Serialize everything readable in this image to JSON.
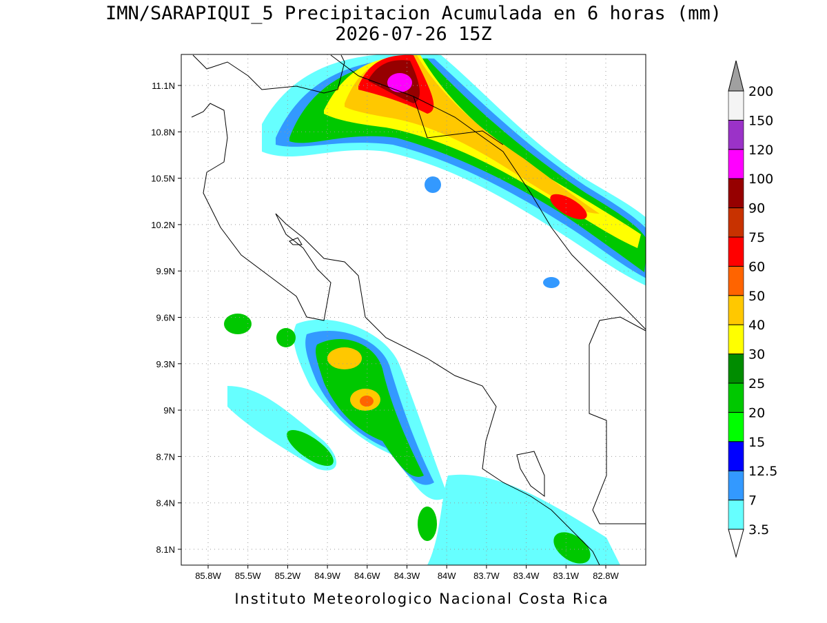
{
  "title": "IMN/SARAPIQUI_5 Precipitacion Acumulada en 6 horas (mm)",
  "subtitle": "2026-07-26 15Z",
  "lat_labels": [
    "11.1N",
    "10.8N",
    "10.5N",
    "10.2N",
    "9.9N",
    "9.6N",
    "9.3N",
    "9N",
    "8.7N",
    "8.4N",
    "8.1N"
  ],
  "lon_labels": [
    "85.8W",
    "85.5W",
    "85.2W",
    "84.9W",
    "84.6W",
    "84.3W",
    "84W",
    "83.7W",
    "83.4W",
    "83.1W",
    "82.8W"
  ],
  "colorbar": {
    "levels": [
      3.5,
      7,
      12.5,
      15,
      20,
      25,
      30,
      40,
      50,
      60,
      75,
      90,
      100,
      120,
      150,
      200
    ],
    "colors": [
      "#66ffff",
      "#3399ff",
      "#0000ff",
      "#00ff00",
      "#00c800",
      "#008c00",
      "#ffff00",
      "#ffc800",
      "#ff6400",
      "#ff0000",
      "#c83200",
      "#960000",
      "#ff00ff",
      "#9b32c8",
      "#f4f4f4"
    ],
    "below_color": "#ffffff",
    "above_color": "#a0a0a0"
  },
  "footer": "Instituto Meteorologico Nacional Costa Rica"
}
